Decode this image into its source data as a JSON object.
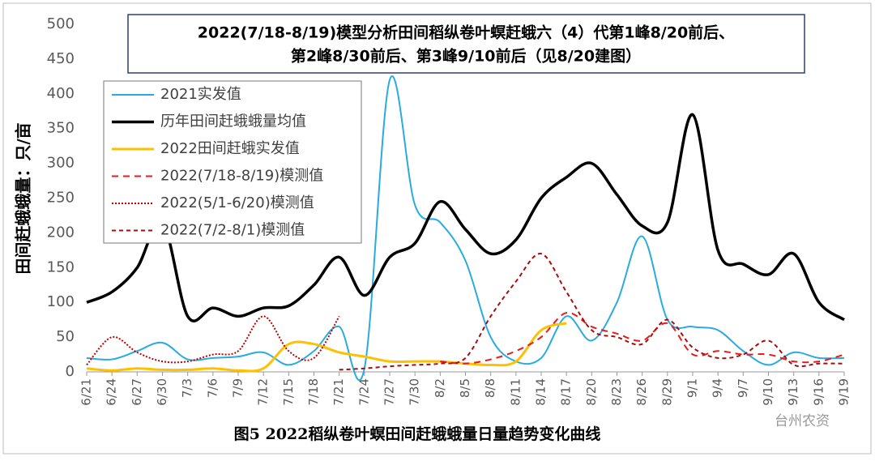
{
  "chart_data": {
    "type": "line",
    "title": [
      "2022(7/18-8/19)模型分析田间稻纵卷叶螟赶蛾六（4）代第1峰8/20前后、",
      "第2峰8/30前后、第3峰9/10前后（见8/20建图）"
    ],
    "y_label": "田间赶蛾蛾量：只/亩",
    "caption": "图5   2022稻纵卷叶螟田间赶蛾蛾量日量趋势变化曲线",
    "watermark": "台州农资",
    "categories": [
      "6/21",
      "6/24",
      "6/27",
      "6/30",
      "7/3",
      "7/6",
      "7/9",
      "7/12",
      "7/15",
      "7/18",
      "7/21",
      "7/24",
      "7/27",
      "7/30",
      "8/2",
      "8/5",
      "8/8",
      "8/11",
      "8/14",
      "8/17",
      "8/20",
      "8/23",
      "8/26",
      "8/29",
      "9/1",
      "9/4",
      "9/7",
      "9/10",
      "9/13",
      "9/16",
      "9/19"
    ],
    "ylim": [
      0,
      500
    ],
    "yticks": [
      0,
      50,
      100,
      150,
      200,
      250,
      300,
      350,
      400,
      450,
      500
    ],
    "grid": false,
    "legend": "top-left",
    "series": [
      {
        "name": "2021实发值",
        "color": "#29abe2",
        "width": 2,
        "dash": "none",
        "values": [
          20,
          18,
          30,
          42,
          18,
          20,
          22,
          28,
          10,
          30,
          65,
          5,
          420,
          240,
          215,
          160,
          50,
          15,
          20,
          80,
          45,
          100,
          195,
          75,
          65,
          60,
          30,
          10,
          28,
          20,
          20
        ]
      },
      {
        "name": "历年田间赶蛾蛾量均值",
        "color": "#000000",
        "width": 3.5,
        "dash": "none",
        "values": [
          100,
          115,
          150,
          215,
          80,
          92,
          80,
          92,
          95,
          125,
          165,
          110,
          165,
          185,
          245,
          205,
          170,
          190,
          250,
          280,
          300,
          255,
          210,
          215,
          370,
          175,
          155,
          140,
          170,
          100,
          75
        ]
      },
      {
        "name": "2022田间赶蛾实发值",
        "color": "#ffc000",
        "width": 3,
        "dash": "none",
        "values": [
          5,
          2,
          5,
          3,
          3,
          5,
          2,
          5,
          40,
          40,
          28,
          22,
          15,
          15,
          15,
          12,
          10,
          15,
          60,
          70,
          null,
          null,
          null,
          null,
          null,
          null,
          null,
          null,
          null,
          null,
          null
        ]
      },
      {
        "name": "2022(7/18-8/19)模测值",
        "color": "#e8191c",
        "width": 2,
        "dash": "8,6",
        "values": [
          null,
          null,
          null,
          null,
          null,
          null,
          null,
          null,
          null,
          null,
          null,
          null,
          null,
          null,
          15,
          12,
          18,
          30,
          50,
          85,
          65,
          55,
          45,
          70,
          25,
          30,
          25,
          25,
          15,
          15,
          25
        ]
      },
      {
        "name": "2022(5/1-6/20)模测值",
        "color": "#c00000",
        "width": 2,
        "dash": "2,2",
        "values": [
          10,
          50,
          28,
          15,
          15,
          25,
          30,
          80,
          30,
          20,
          80,
          null,
          null,
          null,
          null,
          null,
          null,
          null,
          null,
          null,
          null,
          null,
          null,
          null,
          null,
          null,
          null,
          null,
          null,
          null,
          null
        ]
      },
      {
        "name": "2022(7/2-8/1)模测值",
        "color": "#a50e0e",
        "width": 2,
        "dash": "5,4",
        "values": [
          null,
          null,
          null,
          null,
          null,
          null,
          null,
          null,
          null,
          null,
          3,
          5,
          8,
          10,
          12,
          20,
          80,
          130,
          170,
          115,
          60,
          50,
          40,
          75,
          35,
          20,
          25,
          45,
          10,
          12,
          12
        ]
      }
    ]
  }
}
